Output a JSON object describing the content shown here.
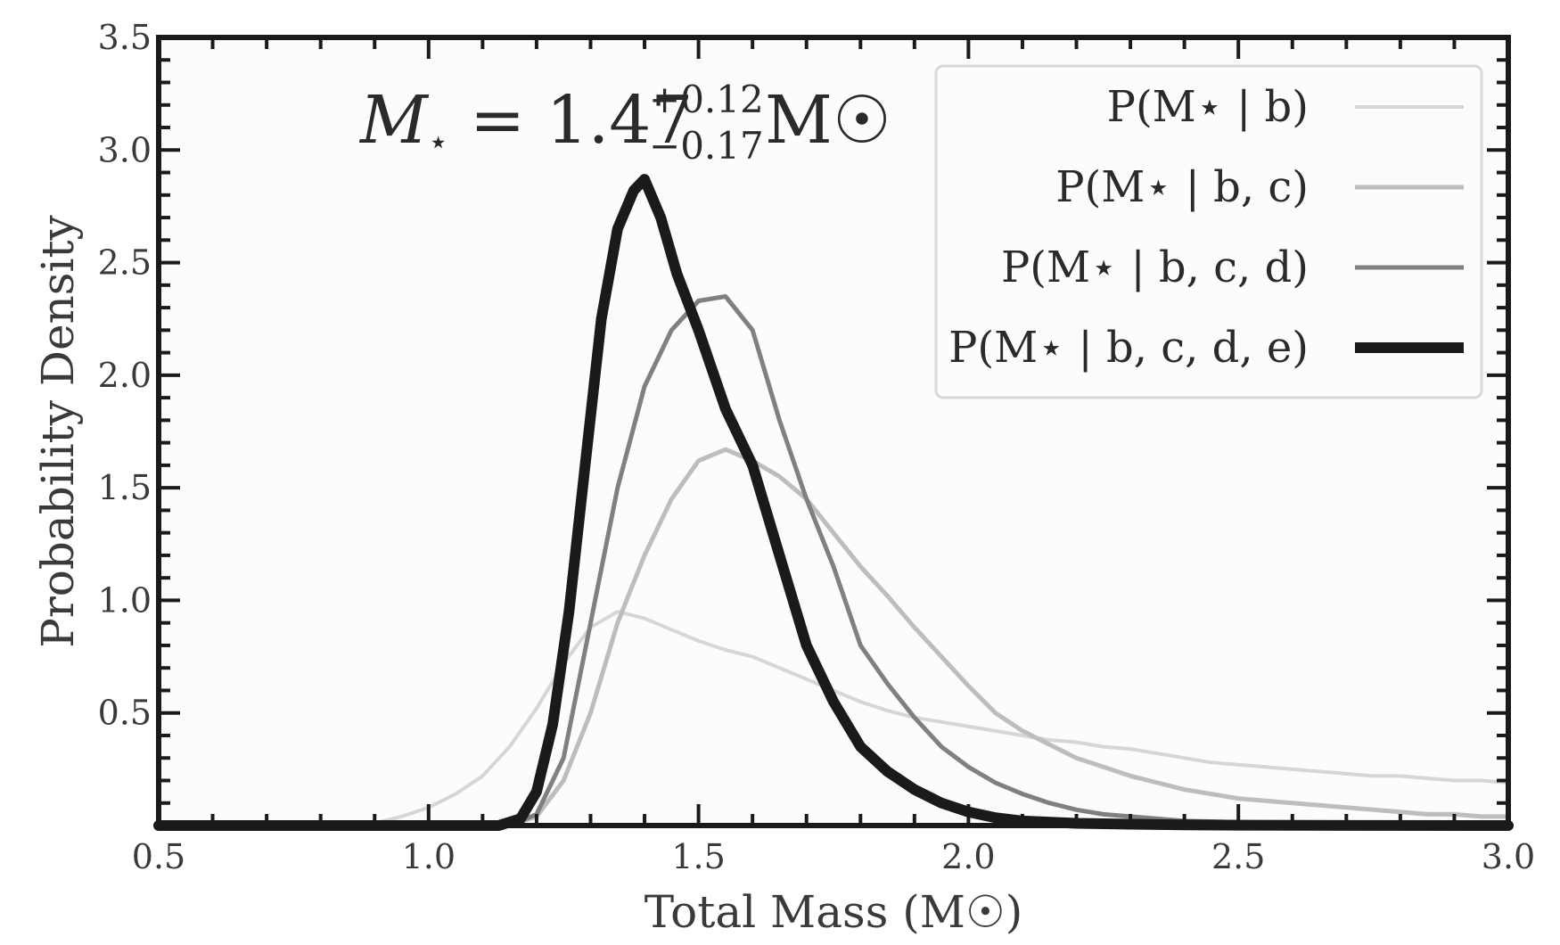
{
  "chart_data": {
    "type": "line",
    "xlabel": "Total Mass (M☉)",
    "ylabel": "Probability Density",
    "xlim": [
      0.5,
      3.0
    ],
    "ylim": [
      0.0,
      3.5
    ],
    "x_ticks": [
      "0.5",
      "1.0",
      "1.5",
      "2.0",
      "2.5",
      "3.0"
    ],
    "y_ticks": [
      "0.5",
      "1.0",
      "1.5",
      "2.0",
      "2.5",
      "3.0",
      "3.5"
    ],
    "grid": false,
    "legend_position": "top-right",
    "annotation": {
      "symbol": "M",
      "subscript": "⋆",
      "equals": " = 1.47",
      "upper": "+0.12",
      "lower": "−0.17",
      "unit": " M☉"
    },
    "series": [
      {
        "name": "P(M⋆ | b)",
        "color": "#d6d6d6",
        "width": 4,
        "x": [
          0.5,
          0.8,
          0.9,
          0.95,
          1.0,
          1.05,
          1.1,
          1.15,
          1.2,
          1.25,
          1.3,
          1.35,
          1.4,
          1.45,
          1.5,
          1.55,
          1.6,
          1.65,
          1.7,
          1.75,
          1.8,
          1.85,
          1.9,
          1.95,
          2.0,
          2.05,
          2.1,
          2.15,
          2.2,
          2.25,
          2.3,
          2.35,
          2.4,
          2.45,
          2.5,
          2.55,
          2.6,
          2.65,
          2.7,
          2.75,
          2.8,
          2.85,
          2.9,
          2.95,
          3.0
        ],
        "y": [
          0.0,
          0.0,
          0.01,
          0.04,
          0.08,
          0.14,
          0.22,
          0.35,
          0.52,
          0.72,
          0.88,
          0.95,
          0.92,
          0.87,
          0.82,
          0.78,
          0.75,
          0.7,
          0.65,
          0.6,
          0.55,
          0.51,
          0.48,
          0.46,
          0.44,
          0.42,
          0.4,
          0.38,
          0.37,
          0.35,
          0.34,
          0.32,
          0.3,
          0.28,
          0.27,
          0.26,
          0.25,
          0.24,
          0.23,
          0.22,
          0.22,
          0.21,
          0.2,
          0.2,
          0.19
        ]
      },
      {
        "name": "P(M⋆ | b, c)",
        "color": "#bdbdbd",
        "width": 5,
        "x": [
          0.5,
          1.15,
          1.2,
          1.25,
          1.3,
          1.35,
          1.4,
          1.45,
          1.5,
          1.55,
          1.6,
          1.65,
          1.7,
          1.75,
          1.8,
          1.85,
          1.9,
          1.95,
          2.0,
          2.05,
          2.1,
          2.15,
          2.2,
          2.25,
          2.3,
          2.35,
          2.4,
          2.45,
          2.5,
          2.55,
          2.6,
          2.65,
          2.7,
          2.75,
          2.8,
          2.85,
          2.9,
          2.95,
          3.0
        ],
        "y": [
          0.0,
          0.0,
          0.04,
          0.2,
          0.5,
          0.9,
          1.2,
          1.45,
          1.62,
          1.67,
          1.62,
          1.55,
          1.45,
          1.3,
          1.15,
          1.02,
          0.88,
          0.75,
          0.62,
          0.5,
          0.42,
          0.36,
          0.3,
          0.26,
          0.22,
          0.19,
          0.16,
          0.14,
          0.12,
          0.11,
          0.1,
          0.09,
          0.08,
          0.07,
          0.06,
          0.05,
          0.05,
          0.04,
          0.04
        ]
      },
      {
        "name": "P(M⋆ | b, c, d)",
        "color": "#808080",
        "width": 5,
        "x": [
          0.5,
          1.15,
          1.2,
          1.25,
          1.3,
          1.35,
          1.4,
          1.45,
          1.5,
          1.55,
          1.6,
          1.65,
          1.7,
          1.75,
          1.8,
          1.85,
          1.9,
          1.95,
          2.0,
          2.05,
          2.1,
          2.15,
          2.2,
          2.25,
          2.3,
          2.35,
          2.4,
          2.5,
          2.6,
          2.7,
          2.8,
          3.0
        ],
        "y": [
          0.0,
          0.0,
          0.05,
          0.3,
          0.9,
          1.5,
          1.95,
          2.2,
          2.33,
          2.35,
          2.2,
          1.8,
          1.45,
          1.15,
          0.8,
          0.63,
          0.48,
          0.35,
          0.26,
          0.19,
          0.14,
          0.1,
          0.07,
          0.05,
          0.04,
          0.03,
          0.02,
          0.015,
          0.01,
          0.005,
          0.003,
          0.0
        ]
      },
      {
        "name": "P(M⋆ | b, c, d, e)",
        "color": "#1a1a1a",
        "width": 12,
        "x": [
          0.5,
          1.13,
          1.17,
          1.2,
          1.23,
          1.26,
          1.29,
          1.32,
          1.35,
          1.38,
          1.4,
          1.43,
          1.46,
          1.5,
          1.55,
          1.6,
          1.65,
          1.7,
          1.75,
          1.8,
          1.85,
          1.9,
          1.95,
          2.0,
          2.05,
          2.1,
          2.2,
          2.3,
          2.4,
          2.5,
          2.7,
          3.0
        ],
        "y": [
          0.0,
          0.0,
          0.03,
          0.15,
          0.45,
          0.95,
          1.6,
          2.25,
          2.65,
          2.82,
          2.87,
          2.7,
          2.45,
          2.2,
          1.85,
          1.6,
          1.2,
          0.8,
          0.55,
          0.35,
          0.24,
          0.16,
          0.1,
          0.06,
          0.035,
          0.02,
          0.01,
          0.006,
          0.003,
          0.0015,
          0.0005,
          0.0
        ]
      }
    ]
  }
}
